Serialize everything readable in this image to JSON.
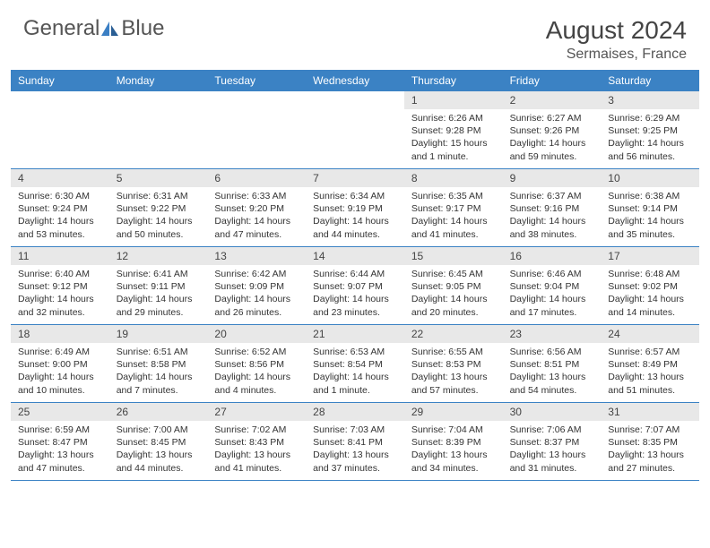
{
  "logo": {
    "text1": "General",
    "text2": "Blue"
  },
  "header": {
    "title": "August 2024",
    "location": "Sermaises, France"
  },
  "colors": {
    "header_bar": "#3b82c4",
    "daynum_bg": "#e8e8e8",
    "text": "#333333",
    "logo_gray": "#555555",
    "logo_blue": "#3b7fc4"
  },
  "dow": [
    "Sunday",
    "Monday",
    "Tuesday",
    "Wednesday",
    "Thursday",
    "Friday",
    "Saturday"
  ],
  "weeks": [
    [
      {
        "n": "",
        "sr": "",
        "ss": "",
        "dl": ""
      },
      {
        "n": "",
        "sr": "",
        "ss": "",
        "dl": ""
      },
      {
        "n": "",
        "sr": "",
        "ss": "",
        "dl": ""
      },
      {
        "n": "",
        "sr": "",
        "ss": "",
        "dl": ""
      },
      {
        "n": "1",
        "sr": "Sunrise: 6:26 AM",
        "ss": "Sunset: 9:28 PM",
        "dl": "Daylight: 15 hours and 1 minute."
      },
      {
        "n": "2",
        "sr": "Sunrise: 6:27 AM",
        "ss": "Sunset: 9:26 PM",
        "dl": "Daylight: 14 hours and 59 minutes."
      },
      {
        "n": "3",
        "sr": "Sunrise: 6:29 AM",
        "ss": "Sunset: 9:25 PM",
        "dl": "Daylight: 14 hours and 56 minutes."
      }
    ],
    [
      {
        "n": "4",
        "sr": "Sunrise: 6:30 AM",
        "ss": "Sunset: 9:24 PM",
        "dl": "Daylight: 14 hours and 53 minutes."
      },
      {
        "n": "5",
        "sr": "Sunrise: 6:31 AM",
        "ss": "Sunset: 9:22 PM",
        "dl": "Daylight: 14 hours and 50 minutes."
      },
      {
        "n": "6",
        "sr": "Sunrise: 6:33 AM",
        "ss": "Sunset: 9:20 PM",
        "dl": "Daylight: 14 hours and 47 minutes."
      },
      {
        "n": "7",
        "sr": "Sunrise: 6:34 AM",
        "ss": "Sunset: 9:19 PM",
        "dl": "Daylight: 14 hours and 44 minutes."
      },
      {
        "n": "8",
        "sr": "Sunrise: 6:35 AM",
        "ss": "Sunset: 9:17 PM",
        "dl": "Daylight: 14 hours and 41 minutes."
      },
      {
        "n": "9",
        "sr": "Sunrise: 6:37 AM",
        "ss": "Sunset: 9:16 PM",
        "dl": "Daylight: 14 hours and 38 minutes."
      },
      {
        "n": "10",
        "sr": "Sunrise: 6:38 AM",
        "ss": "Sunset: 9:14 PM",
        "dl": "Daylight: 14 hours and 35 minutes."
      }
    ],
    [
      {
        "n": "11",
        "sr": "Sunrise: 6:40 AM",
        "ss": "Sunset: 9:12 PM",
        "dl": "Daylight: 14 hours and 32 minutes."
      },
      {
        "n": "12",
        "sr": "Sunrise: 6:41 AM",
        "ss": "Sunset: 9:11 PM",
        "dl": "Daylight: 14 hours and 29 minutes."
      },
      {
        "n": "13",
        "sr": "Sunrise: 6:42 AM",
        "ss": "Sunset: 9:09 PM",
        "dl": "Daylight: 14 hours and 26 minutes."
      },
      {
        "n": "14",
        "sr": "Sunrise: 6:44 AM",
        "ss": "Sunset: 9:07 PM",
        "dl": "Daylight: 14 hours and 23 minutes."
      },
      {
        "n": "15",
        "sr": "Sunrise: 6:45 AM",
        "ss": "Sunset: 9:05 PM",
        "dl": "Daylight: 14 hours and 20 minutes."
      },
      {
        "n": "16",
        "sr": "Sunrise: 6:46 AM",
        "ss": "Sunset: 9:04 PM",
        "dl": "Daylight: 14 hours and 17 minutes."
      },
      {
        "n": "17",
        "sr": "Sunrise: 6:48 AM",
        "ss": "Sunset: 9:02 PM",
        "dl": "Daylight: 14 hours and 14 minutes."
      }
    ],
    [
      {
        "n": "18",
        "sr": "Sunrise: 6:49 AM",
        "ss": "Sunset: 9:00 PM",
        "dl": "Daylight: 14 hours and 10 minutes."
      },
      {
        "n": "19",
        "sr": "Sunrise: 6:51 AM",
        "ss": "Sunset: 8:58 PM",
        "dl": "Daylight: 14 hours and 7 minutes."
      },
      {
        "n": "20",
        "sr": "Sunrise: 6:52 AM",
        "ss": "Sunset: 8:56 PM",
        "dl": "Daylight: 14 hours and 4 minutes."
      },
      {
        "n": "21",
        "sr": "Sunrise: 6:53 AM",
        "ss": "Sunset: 8:54 PM",
        "dl": "Daylight: 14 hours and 1 minute."
      },
      {
        "n": "22",
        "sr": "Sunrise: 6:55 AM",
        "ss": "Sunset: 8:53 PM",
        "dl": "Daylight: 13 hours and 57 minutes."
      },
      {
        "n": "23",
        "sr": "Sunrise: 6:56 AM",
        "ss": "Sunset: 8:51 PM",
        "dl": "Daylight: 13 hours and 54 minutes."
      },
      {
        "n": "24",
        "sr": "Sunrise: 6:57 AM",
        "ss": "Sunset: 8:49 PM",
        "dl": "Daylight: 13 hours and 51 minutes."
      }
    ],
    [
      {
        "n": "25",
        "sr": "Sunrise: 6:59 AM",
        "ss": "Sunset: 8:47 PM",
        "dl": "Daylight: 13 hours and 47 minutes."
      },
      {
        "n": "26",
        "sr": "Sunrise: 7:00 AM",
        "ss": "Sunset: 8:45 PM",
        "dl": "Daylight: 13 hours and 44 minutes."
      },
      {
        "n": "27",
        "sr": "Sunrise: 7:02 AM",
        "ss": "Sunset: 8:43 PM",
        "dl": "Daylight: 13 hours and 41 minutes."
      },
      {
        "n": "28",
        "sr": "Sunrise: 7:03 AM",
        "ss": "Sunset: 8:41 PM",
        "dl": "Daylight: 13 hours and 37 minutes."
      },
      {
        "n": "29",
        "sr": "Sunrise: 7:04 AM",
        "ss": "Sunset: 8:39 PM",
        "dl": "Daylight: 13 hours and 34 minutes."
      },
      {
        "n": "30",
        "sr": "Sunrise: 7:06 AM",
        "ss": "Sunset: 8:37 PM",
        "dl": "Daylight: 13 hours and 31 minutes."
      },
      {
        "n": "31",
        "sr": "Sunrise: 7:07 AM",
        "ss": "Sunset: 8:35 PM",
        "dl": "Daylight: 13 hours and 27 minutes."
      }
    ]
  ]
}
